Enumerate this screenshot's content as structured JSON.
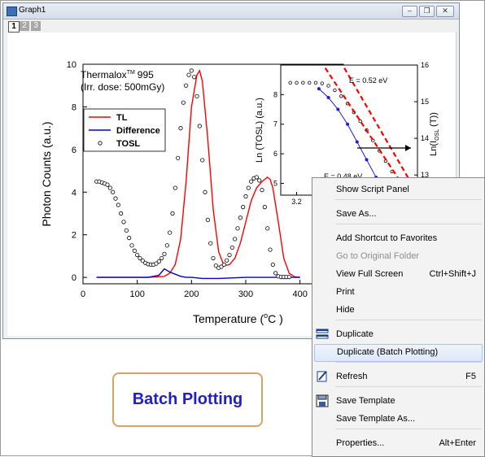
{
  "window": {
    "title": "Graph1",
    "buttons": [
      "minimize",
      "restore",
      "close"
    ],
    "layers": [
      "1",
      "2",
      "3"
    ]
  },
  "chart_data": [
    {
      "type": "line",
      "annotation_title": "Thermalox",
      "annotation_tm": "TM",
      "annotation_model": "995",
      "annotation_dose": "(Irr. dose: 500mGy)",
      "xlabel_prefix": "Temperature (",
      "xlabel_deg": "o",
      "xlabel_suffix": "C )",
      "ylabel": "Photon Counts (a.u.)",
      "xlim": [
        0,
        480
      ],
      "ylim": [
        -0.3,
        10
      ],
      "xticks": [
        "0",
        "100",
        "200",
        "300",
        "400"
      ],
      "yticks": [
        "0",
        "2",
        "4",
        "6",
        "8",
        "10"
      ],
      "legend": {
        "position": "top-left",
        "entries": [
          "TL",
          "Difference",
          "TOSL"
        ]
      },
      "series": [
        {
          "name": "TL",
          "color": "#ff0000",
          "style": "line",
          "x": [
            25,
            120,
            150,
            160,
            170,
            180,
            190,
            200,
            210,
            215,
            220,
            230,
            240,
            250,
            260,
            270,
            280,
            290,
            300,
            310,
            320,
            330,
            340,
            345,
            350,
            360,
            370,
            380,
            390,
            400
          ],
          "y": [
            0,
            0,
            0.05,
            0.2,
            0.6,
            1.8,
            4.5,
            8.0,
            9.5,
            9.7,
            9.2,
            6.5,
            3.2,
            1.2,
            0.55,
            0.6,
            0.9,
            1.6,
            2.6,
            3.6,
            4.2,
            4.5,
            4.7,
            4.6,
            4.2,
            2.6,
            0.9,
            0.2,
            0.03,
            0
          ]
        },
        {
          "name": "Difference",
          "color": "#0000cc",
          "style": "line",
          "x": [
            25,
            60,
            80,
            100,
            120,
            140,
            150,
            160,
            170,
            180,
            190,
            200,
            220,
            250,
            300,
            350,
            400
          ],
          "y": [
            0,
            0,
            0,
            0,
            0,
            0.1,
            0.4,
            0.25,
            0.15,
            0.05,
            0,
            0,
            -0.05,
            -0.05,
            0,
            0,
            0
          ]
        },
        {
          "name": "TOSL",
          "color": "#000000",
          "style": "open-circle",
          "x": [
            25,
            30,
            35,
            40,
            45,
            50,
            55,
            60,
            65,
            70,
            75,
            80,
            85,
            90,
            95,
            100,
            105,
            110,
            115,
            120,
            125,
            130,
            135,
            140,
            145,
            150,
            155,
            160,
            165,
            170,
            175,
            180,
            185,
            190,
            195,
            200,
            205,
            210,
            215,
            220,
            225,
            230,
            235,
            240,
            245,
            250,
            255,
            260,
            265,
            270,
            275,
            280,
            285,
            290,
            295,
            300,
            305,
            310,
            315,
            320,
            325,
            330,
            335,
            340,
            345,
            350,
            355,
            360,
            365,
            370,
            375,
            380
          ],
          "y": [
            4.5,
            4.5,
            4.45,
            4.4,
            4.35,
            4.2,
            4.0,
            3.7,
            3.4,
            3.0,
            2.6,
            2.2,
            1.85,
            1.5,
            1.25,
            1.05,
            0.9,
            0.78,
            0.68,
            0.62,
            0.6,
            0.6,
            0.65,
            0.75,
            0.9,
            1.1,
            1.5,
            2.1,
            3.0,
            4.2,
            5.6,
            7.0,
            8.2,
            9.0,
            9.5,
            9.7,
            9.4,
            8.5,
            7.1,
            5.5,
            4.0,
            2.7,
            1.6,
            0.9,
            0.55,
            0.45,
            0.5,
            0.6,
            0.8,
            1.05,
            1.4,
            1.8,
            2.3,
            2.8,
            3.3,
            3.8,
            4.2,
            4.5,
            4.65,
            4.7,
            4.55,
            4.1,
            3.3,
            2.3,
            1.3,
            0.6,
            0.2,
            0.05,
            0.02,
            0.02,
            0.02,
            0.02
          ]
        }
      ]
    },
    {
      "type": "line",
      "role": "inset",
      "ylabel_left": "Ln (TOSL) (a.u.)",
      "ylabel_right_prefix": "Ln(I",
      "ylabel_right_sub": "OSL",
      "ylabel_right_suffix": " (T))",
      "yticks_left": [
        "5",
        "6",
        "7",
        "8"
      ],
      "yticks_right": [
        "13",
        "14",
        "15",
        "16"
      ],
      "xticks": [
        "3.2"
      ],
      "annotations": [
        "E = 0.52 eV",
        "E = 0.48 eV"
      ],
      "series": [
        {
          "name": "TOSL ln",
          "color": "#000000",
          "style": "open-circle",
          "x": [
            3.18,
            3.2,
            3.22,
            3.24,
            3.26,
            3.28,
            3.3,
            3.32,
            3.34,
            3.36,
            3.38,
            3.4,
            3.42,
            3.44,
            3.46,
            3.48,
            3.5,
            3.52,
            3.54,
            3.56
          ],
          "y": [
            8.4,
            8.4,
            8.4,
            8.4,
            8.4,
            8.38,
            8.3,
            8.15,
            7.95,
            7.7,
            7.4,
            7.1,
            6.8,
            6.45,
            6.1,
            5.75,
            5.4,
            5.0,
            4.6,
            4.2
          ]
        },
        {
          "name": "Ln(I_OSL(T))",
          "color": "#1a1aee",
          "style": "filled-circle",
          "x": [
            3.27,
            3.3,
            3.33,
            3.36,
            3.39,
            3.42,
            3.45
          ],
          "y": [
            8.2,
            7.9,
            7.5,
            7.0,
            6.4,
            5.8,
            5.2
          ]
        },
        {
          "name": "fit 0.52",
          "color": "#ff0000",
          "style": "dashed",
          "x": [
            3.29,
            3.53
          ],
          "y": [
            8.9,
            5.0
          ]
        },
        {
          "name": "fit 0.48",
          "color": "#ff0000",
          "style": "dashed",
          "x": [
            3.35,
            3.55
          ],
          "y": [
            8.9,
            5.2
          ]
        }
      ]
    }
  ],
  "batch_label": "Batch Plotting",
  "menu": {
    "items": [
      {
        "label": "Show Script Panel",
        "shortcut": "",
        "icon": "",
        "disabled": false
      },
      {
        "label": "Save As...",
        "shortcut": "",
        "icon": "",
        "disabled": false
      },
      {
        "label": "Add Shortcut to Favorites",
        "shortcut": "",
        "icon": "",
        "disabled": false
      },
      {
        "label": "Go to Original Folder",
        "shortcut": "",
        "icon": "",
        "disabled": true
      },
      {
        "label": "View Full Screen",
        "shortcut": "Ctrl+Shift+J",
        "icon": "",
        "disabled": false
      },
      {
        "label": "Print",
        "shortcut": "",
        "icon": "",
        "disabled": false
      },
      {
        "label": "Hide",
        "shortcut": "",
        "icon": "",
        "disabled": false
      },
      {
        "label": "Duplicate",
        "shortcut": "",
        "icon": "duplicate-icon",
        "disabled": false
      },
      {
        "label": "Duplicate (Batch Plotting)",
        "shortcut": "",
        "icon": "",
        "disabled": false,
        "highlighted": true
      },
      {
        "label": "Refresh",
        "shortcut": "F5",
        "icon": "refresh-icon",
        "disabled": false
      },
      {
        "label": "Save Template",
        "shortcut": "",
        "icon": "save-template-icon",
        "disabled": false
      },
      {
        "label": "Save Template As...",
        "shortcut": "",
        "icon": "",
        "disabled": false
      },
      {
        "label": "Properties...",
        "shortcut": "Alt+Enter",
        "icon": "",
        "disabled": false
      }
    ]
  },
  "colors": {
    "menu_highlight": "#dde8f8",
    "batch_border": "#d4a564",
    "batch_text": "#1f1fc4"
  }
}
